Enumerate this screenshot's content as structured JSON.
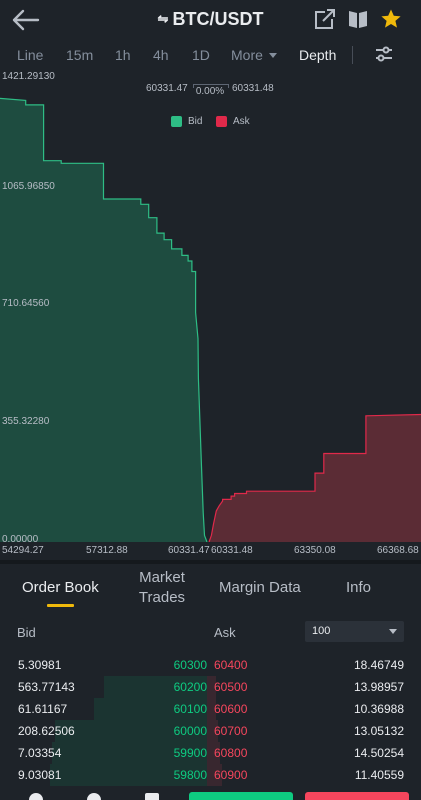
{
  "header": {
    "title": "BTC/USDT",
    "swap_glyph": "⇋",
    "icons": [
      "back-arrow-icon",
      "external-link-icon",
      "book-icon",
      "star-icon"
    ]
  },
  "timeframes": {
    "items": [
      "Line",
      "15m",
      "1h",
      "4h",
      "1D",
      "More",
      "Depth"
    ],
    "active": "Depth"
  },
  "chart_data": {
    "type": "area",
    "y_ticks": [
      "1421.29130",
      "1065.96850",
      "710.64560",
      "355.32280",
      "0.00000"
    ],
    "x_ticks": [
      "54294.27",
      "57312.88",
      "60331.47",
      "60331.48",
      "63350.08",
      "66368.68"
    ],
    "mid_left": "60331.47",
    "mid_right": "60331.48",
    "spread_pct": "0.00%",
    "legend": [
      {
        "label": "Bid",
        "color": "#2ebd85"
      },
      {
        "label": "Ask",
        "color": "#e0294a"
      }
    ],
    "xlim": [
      54294.27,
      66368.68
    ],
    "ylim": [
      0,
      1421.2913
    ],
    "bid_series": {
      "name": "Bid",
      "x": [
        54294.27,
        55045,
        55045,
        55565,
        55565,
        56080,
        56080,
        57312.88,
        57312.88,
        58400,
        58400,
        58630,
        58630,
        58870,
        58870,
        59080,
        59080,
        59300,
        59300,
        59600,
        59600,
        59780,
        59780,
        59890,
        59890,
        60000,
        60000,
        60070,
        60080,
        60170,
        60220,
        60260,
        60331.47
      ],
      "y": [
        1353,
        1347,
        1333,
        1333,
        1163,
        1163,
        1155,
        1155,
        1046,
        1046,
        1030,
        1030,
        989,
        989,
        942,
        942,
        922,
        922,
        894,
        894,
        874,
        874,
        857,
        857,
        825,
        825,
        700,
        620,
        500,
        230,
        90,
        20,
        0
      ]
    },
    "ask_series": {
      "name": "Ask",
      "x": [
        60331.48,
        60400,
        60460,
        60540,
        60620,
        60720,
        60720,
        60960,
        60960,
        61060,
        61060,
        61400,
        61400,
        63350.08,
        63350.08,
        63600,
        63600,
        64800,
        64800,
        66368.68
      ],
      "y": [
        0,
        20,
        55,
        95,
        110,
        125,
        130,
        130,
        140,
        140,
        148,
        148,
        155,
        155,
        210,
        210,
        270,
        270,
        385,
        389
      ]
    }
  },
  "tabs": {
    "items": [
      "Order Book",
      "Market Trades",
      "Margin Data",
      "Info"
    ],
    "active": "Order Book",
    "market_line1": "Market",
    "market_line2": "Trades"
  },
  "order_book": {
    "bid_header": "Bid",
    "ask_header": "Ask",
    "precision": "100",
    "rows": [
      {
        "bid_qty": "5.30981",
        "bid_price": "60300",
        "ask_price": "60400",
        "ask_qty": "18.46749",
        "bid_depth": 0.0,
        "ask_depth": 0.0
      },
      {
        "bid_qty": "563.77143",
        "bid_price": "60200",
        "ask_price": "60500",
        "ask_qty": "13.98957",
        "bid_depth": 0.5,
        "ask_depth": 0.04
      },
      {
        "bid_qty": "61.61167",
        "bid_price": "60100",
        "ask_price": "60600",
        "ask_qty": "10.36988",
        "bid_depth": 0.55,
        "ask_depth": 0.04
      },
      {
        "bid_qty": "208.62506",
        "bid_price": "60000",
        "ask_price": "60700",
        "ask_qty": "13.05132",
        "bid_depth": 0.74,
        "ask_depth": 0.05
      },
      {
        "bid_qty": "7.03354",
        "bid_price": "59900",
        "ask_price": "60800",
        "ask_qty": "14.50254",
        "bid_depth": 0.75,
        "ask_depth": 0.06
      },
      {
        "bid_qty": "9.03081",
        "bid_price": "59800",
        "ask_price": "60900",
        "ask_qty": "11.40559",
        "bid_depth": 0.76,
        "ask_depth": 0.07
      }
    ]
  },
  "colors": {
    "bg": "#1e2329",
    "bid": "#0ecb81",
    "ask": "#f6465d",
    "accent": "#f0b90b"
  }
}
